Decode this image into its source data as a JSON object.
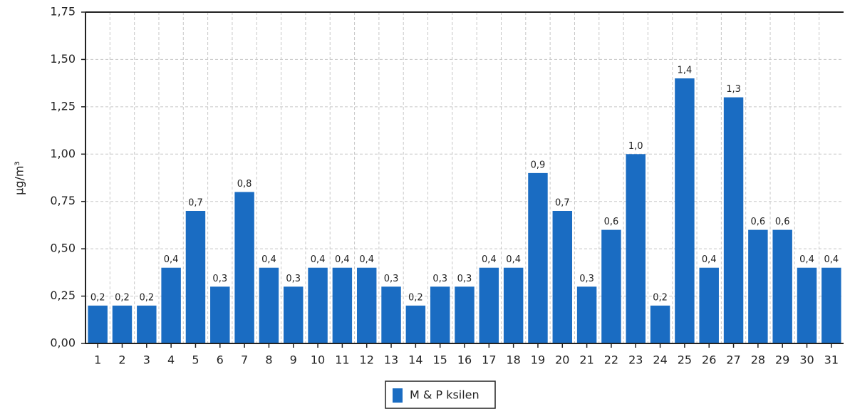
{
  "chart_data": {
    "type": "bar",
    "y_label": "µg/m³",
    "categories": [
      "1",
      "2",
      "3",
      "4",
      "5",
      "6",
      "7",
      "8",
      "9",
      "10",
      "11",
      "12",
      "13",
      "14",
      "15",
      "16",
      "17",
      "18",
      "19",
      "20",
      "21",
      "22",
      "23",
      "24",
      "25",
      "26",
      "27",
      "28",
      "29",
      "30",
      "31"
    ],
    "series": [
      {
        "name": "M & P ksilen",
        "color": "#1a6cc2",
        "values": [
          0.2,
          0.2,
          0.2,
          0.4,
          0.7,
          0.3,
          0.8,
          0.4,
          0.3,
          0.4,
          0.4,
          0.4,
          0.3,
          0.2,
          0.3,
          0.3,
          0.4,
          0.4,
          0.9,
          0.7,
          0.3,
          0.6,
          1.0,
          0.2,
          1.4,
          0.4,
          1.3,
          0.6,
          0.6,
          0.4,
          0.4
        ],
        "value_labels": [
          "0,2",
          "0,2",
          "0,2",
          "0,4",
          "0,7",
          "0,3",
          "0,8",
          "0,4",
          "0,3",
          "0,4",
          "0,4",
          "0,4",
          "0,3",
          "0,2",
          "0,3",
          "0,3",
          "0,4",
          "0,4",
          "0,9",
          "0,7",
          "0,3",
          "0,6",
          "1,0",
          "0,2",
          "1,4",
          "0,4",
          "1,3",
          "0,6",
          "0,6",
          "0,4",
          "0,4"
        ]
      }
    ],
    "ylim": [
      0,
      1.75
    ],
    "yticks": [
      {
        "value": 0,
        "label": "0,00"
      },
      {
        "value": 0.25,
        "label": "0,25"
      },
      {
        "value": 0.5,
        "label": "0,50"
      },
      {
        "value": 0.75,
        "label": "0,75"
      },
      {
        "value": 1.0,
        "label": "1,00"
      },
      {
        "value": 1.25,
        "label": "1,25"
      },
      {
        "value": 1.5,
        "label": "1,50"
      },
      {
        "value": 1.75,
        "label": "1,75"
      }
    ],
    "grid": true
  }
}
